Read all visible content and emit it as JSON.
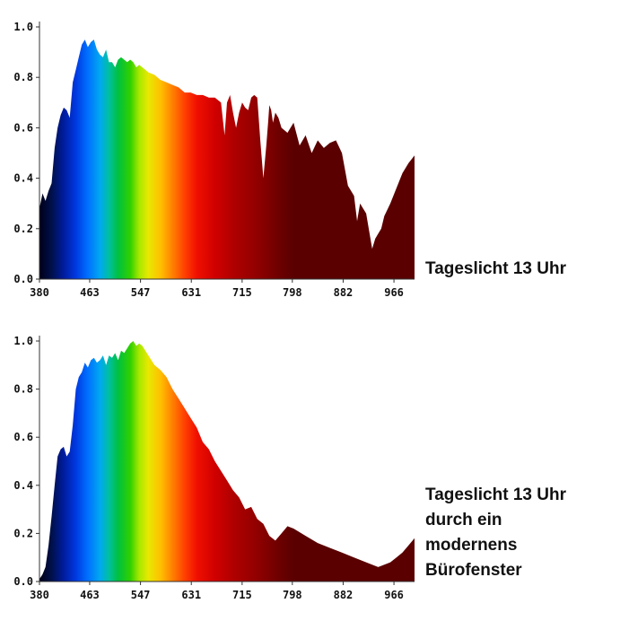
{
  "chart_data": [
    {
      "type": "area",
      "title": "",
      "caption_lines": [
        "Tageslicht 13 Uhr"
      ],
      "xlabel": "",
      "ylabel": "",
      "xlim": [
        380,
        1000
      ],
      "ylim": [
        0,
        1.0
      ],
      "x_ticks": [
        380,
        463,
        547,
        631,
        715,
        798,
        882,
        966
      ],
      "x_tick_labels": [
        "380",
        "463",
        "547",
        "631",
        "715",
        "798",
        "882",
        "966"
      ],
      "y_ticks": [
        0.0,
        0.2,
        0.4,
        0.6,
        0.8,
        1.0
      ],
      "y_tick_labels": [
        "0.0",
        "0.2",
        "0.4",
        "0.6",
        "0.8",
        "1.0"
      ],
      "fill": "visible-spectrum gradient by wavelength",
      "x": [
        380,
        385,
        390,
        395,
        400,
        405,
        410,
        415,
        420,
        425,
        430,
        435,
        440,
        445,
        450,
        455,
        460,
        465,
        470,
        475,
        480,
        485,
        490,
        495,
        500,
        505,
        510,
        515,
        520,
        525,
        530,
        535,
        540,
        545,
        550,
        555,
        560,
        570,
        580,
        590,
        600,
        610,
        620,
        630,
        640,
        650,
        660,
        670,
        680,
        686,
        690,
        695,
        700,
        705,
        710,
        715,
        720,
        725,
        730,
        735,
        740,
        745,
        750,
        755,
        758,
        760,
        763,
        766,
        770,
        775,
        780,
        790,
        800,
        810,
        820,
        830,
        840,
        850,
        860,
        870,
        880,
        890,
        900,
        905,
        910,
        920,
        930,
        935,
        940,
        945,
        950,
        960,
        970,
        980,
        990,
        1000
      ],
      "values": [
        0.28,
        0.34,
        0.31,
        0.35,
        0.38,
        0.52,
        0.6,
        0.65,
        0.68,
        0.67,
        0.64,
        0.78,
        0.83,
        0.88,
        0.93,
        0.95,
        0.92,
        0.94,
        0.95,
        0.91,
        0.89,
        0.88,
        0.91,
        0.86,
        0.86,
        0.84,
        0.87,
        0.88,
        0.87,
        0.86,
        0.87,
        0.86,
        0.84,
        0.85,
        0.84,
        0.83,
        0.82,
        0.81,
        0.79,
        0.78,
        0.77,
        0.76,
        0.74,
        0.74,
        0.73,
        0.73,
        0.72,
        0.72,
        0.7,
        0.57,
        0.7,
        0.73,
        0.66,
        0.6,
        0.66,
        0.7,
        0.68,
        0.67,
        0.72,
        0.73,
        0.72,
        0.55,
        0.4,
        0.53,
        0.62,
        0.69,
        0.67,
        0.62,
        0.66,
        0.64,
        0.6,
        0.58,
        0.62,
        0.53,
        0.57,
        0.5,
        0.55,
        0.52,
        0.54,
        0.55,
        0.5,
        0.37,
        0.33,
        0.23,
        0.3,
        0.26,
        0.12,
        0.16,
        0.18,
        0.2,
        0.25,
        0.3,
        0.36,
        0.42,
        0.46,
        0.49
      ]
    },
    {
      "type": "area",
      "title": "",
      "caption_lines": [
        "Tageslicht 13 Uhr",
        "durch ein",
        "modernens",
        "Bürofenster"
      ],
      "xlabel": "",
      "ylabel": "",
      "xlim": [
        380,
        1000
      ],
      "ylim": [
        0,
        1.0
      ],
      "x_ticks": [
        380,
        463,
        547,
        631,
        715,
        798,
        882,
        966
      ],
      "x_tick_labels": [
        "380",
        "463",
        "547",
        "631",
        "715",
        "798",
        "882",
        "966"
      ],
      "y_ticks": [
        0.0,
        0.2,
        0.4,
        0.6,
        0.8,
        1.0
      ],
      "y_tick_labels": [
        "0.0",
        "0.2",
        "0.4",
        "0.6",
        "0.8",
        "1.0"
      ],
      "fill": "visible-spectrum gradient by wavelength",
      "x": [
        380,
        385,
        390,
        395,
        400,
        405,
        410,
        415,
        420,
        425,
        430,
        435,
        440,
        445,
        450,
        455,
        460,
        465,
        470,
        475,
        480,
        485,
        490,
        495,
        500,
        505,
        510,
        515,
        520,
        525,
        530,
        535,
        540,
        545,
        550,
        555,
        560,
        570,
        580,
        590,
        600,
        610,
        620,
        630,
        640,
        650,
        660,
        670,
        680,
        690,
        700,
        710,
        720,
        730,
        740,
        750,
        760,
        770,
        780,
        790,
        800,
        820,
        840,
        860,
        880,
        900,
        920,
        930,
        940,
        950,
        960,
        970,
        980,
        990,
        1000
      ],
      "values": [
        0.01,
        0.03,
        0.06,
        0.15,
        0.27,
        0.4,
        0.52,
        0.55,
        0.56,
        0.52,
        0.54,
        0.65,
        0.8,
        0.85,
        0.87,
        0.91,
        0.89,
        0.92,
        0.93,
        0.91,
        0.92,
        0.94,
        0.9,
        0.94,
        0.93,
        0.95,
        0.92,
        0.96,
        0.95,
        0.97,
        0.99,
        1.0,
        0.98,
        0.99,
        0.98,
        0.96,
        0.94,
        0.9,
        0.88,
        0.85,
        0.8,
        0.76,
        0.72,
        0.68,
        0.64,
        0.58,
        0.55,
        0.5,
        0.46,
        0.42,
        0.38,
        0.35,
        0.3,
        0.31,
        0.26,
        0.24,
        0.19,
        0.17,
        0.2,
        0.23,
        0.22,
        0.19,
        0.16,
        0.14,
        0.12,
        0.1,
        0.08,
        0.07,
        0.06,
        0.07,
        0.08,
        0.1,
        0.12,
        0.15,
        0.18
      ]
    }
  ]
}
